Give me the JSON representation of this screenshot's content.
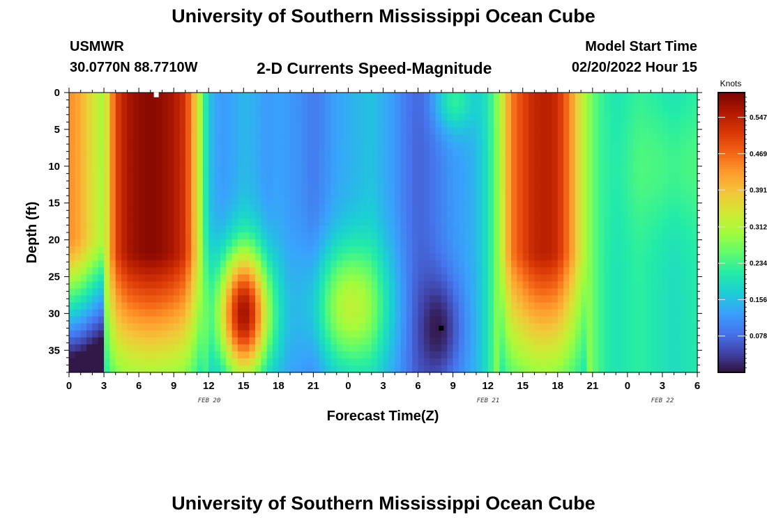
{
  "title": "University of Southern Mississippi Ocean Cube",
  "station": {
    "code": "USMWR",
    "coords": "30.0770N  88.7710W"
  },
  "model_start": {
    "label": "Model Start Time",
    "value": "02/20/2022 Hour 15"
  },
  "subtitle": "2-D Currents Speed-Magnitude",
  "bottom_title": "University of Southern Mississippi Ocean Cube",
  "chart_data": {
    "type": "heatmap",
    "xlabel": "Forecast Time(Z)",
    "ylabel": "Depth (ft)",
    "colorbar_label": "Knots",
    "x_ticks": [
      "0",
      "3",
      "6",
      "9",
      "12",
      "15",
      "18",
      "21",
      "0",
      "3",
      "6",
      "9",
      "12",
      "15",
      "18",
      "21",
      "0",
      "3",
      "6"
    ],
    "date_labels": [
      {
        "text": "FEB 20",
        "tick_index": 6
      },
      {
        "text": "FEB 21",
        "tick_index": 14
      },
      {
        "text": "FEB 22",
        "tick_index": 19
      }
    ],
    "y_ticks": [
      0,
      5,
      10,
      15,
      20,
      25,
      30,
      35
    ],
    "ylim": [
      0,
      38
    ],
    "xlim_hours": [
      0,
      54
    ],
    "colorbar_ticks": [
      0.078,
      0.156,
      0.234,
      0.312,
      0.391,
      0.469,
      0.547
    ],
    "colorbar_range": [
      0,
      0.6
    ],
    "colormap": [
      "#30123b",
      "#4145ab",
      "#4675ed",
      "#39a2fc",
      "#1bcfd4",
      "#24eca6",
      "#61fc6c",
      "#a4fc3b",
      "#d1e834",
      "#f3c63a",
      "#fe9b2d",
      "#f36315",
      "#d93806",
      "#b11901",
      "#7a0402"
    ],
    "markers": [
      {
        "x_hour": 7.5,
        "depth": 0.3,
        "color": "#ffffff"
      },
      {
        "x_hour": 32,
        "depth": 32,
        "color": "#000000"
      }
    ],
    "time_profile": {
      "hours": [
        0,
        1,
        2,
        3,
        4,
        5,
        6,
        7,
        8,
        9,
        10,
        11,
        12,
        13,
        14,
        15,
        16,
        17,
        18,
        19,
        20,
        21,
        22,
        23,
        24,
        25,
        26,
        27,
        28,
        29,
        30,
        31,
        32,
        33,
        34,
        35,
        36,
        37,
        38,
        39,
        40,
        41,
        42,
        43,
        44,
        45,
        46,
        47,
        48,
        49,
        50,
        51,
        52,
        53,
        54
      ],
      "speed": [
        0.44,
        0.41,
        0.35,
        0.3,
        0.5,
        0.56,
        0.58,
        0.59,
        0.58,
        0.56,
        0.52,
        0.36,
        0.16,
        0.12,
        0.13,
        0.15,
        0.14,
        0.12,
        0.13,
        0.12,
        0.11,
        0.09,
        0.11,
        0.13,
        0.14,
        0.15,
        0.16,
        0.14,
        0.12,
        0.09,
        0.07,
        0.08,
        0.1,
        0.12,
        0.13,
        0.15,
        0.2,
        0.3,
        0.45,
        0.5,
        0.54,
        0.55,
        0.53,
        0.45,
        0.34,
        0.26,
        0.22,
        0.2,
        0.21,
        0.22,
        0.21,
        0.2,
        0.19,
        0.2,
        0.21
      ]
    }
  }
}
